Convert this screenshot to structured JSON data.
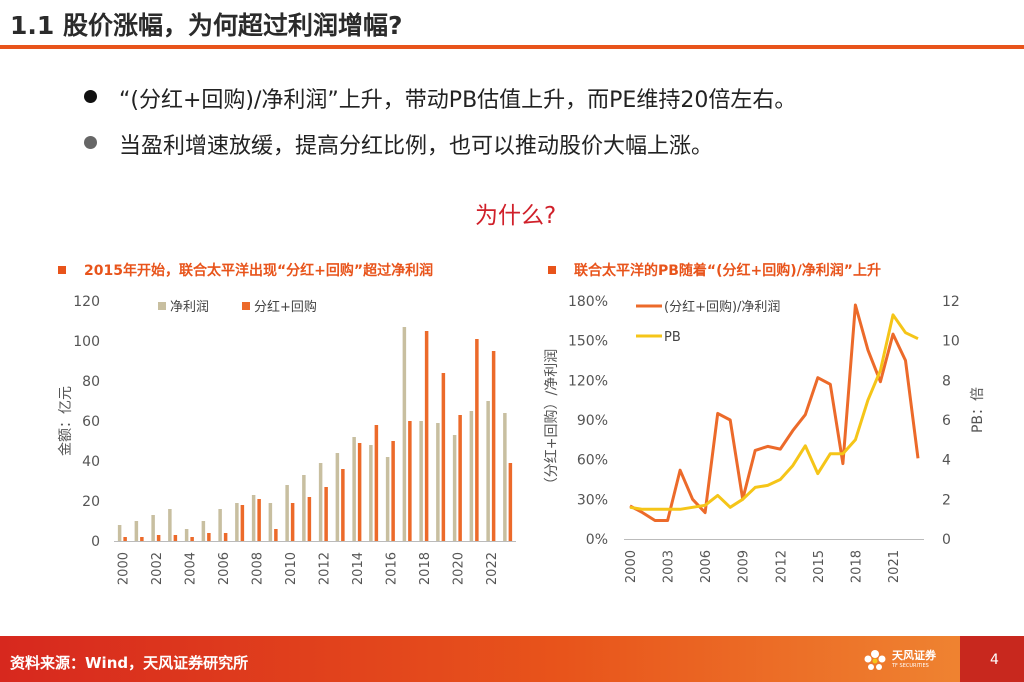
{
  "page_title": "1.1 股价涨幅，为何超过利润增幅?",
  "bullets": [
    "“(分红+回购)/净利润”上升，带动PB估值上升，而PE维持20倍左右。",
    "当盈利增速放缓，提高分红比例，也可以推动股价大幅上涨。"
  ],
  "question": "为什么?",
  "colors": {
    "accent": "#e8541b",
    "bar_profit": "#c8bfa0",
    "bar_div": "#ec6a2a",
    "line_ratio": "#ec6a2a",
    "line_pb": "#f5c518"
  },
  "chart_data": [
    {
      "type": "bar",
      "title": "2015年开始，联合太平洋出现“分红+回购”超过净利润",
      "ylabel": "金额：亿元",
      "ylim": [
        0,
        120
      ],
      "yticks": [
        "0",
        "20",
        "40",
        "60",
        "80",
        "100",
        "120"
      ],
      "xticks": [
        "2000",
        "2002",
        "2004",
        "2006",
        "2008",
        "2010",
        "2012",
        "2014",
        "2016",
        "2018",
        "2020",
        "2022"
      ],
      "categories": [
        "2000",
        "2001",
        "2002",
        "2003",
        "2004",
        "2005",
        "2006",
        "2007",
        "2008",
        "2009",
        "2010",
        "2011",
        "2012",
        "2013",
        "2014",
        "2015",
        "2016",
        "2017",
        "2018",
        "2019",
        "2020",
        "2021",
        "2022",
        "2023"
      ],
      "series": [
        {
          "name": "净利润",
          "values": [
            8,
            10,
            13,
            16,
            6,
            10,
            16,
            19,
            23,
            19,
            28,
            33,
            39,
            44,
            52,
            48,
            42,
            107,
            60,
            59,
            53,
            65,
            70,
            64
          ]
        },
        {
          "name": "分红+回购",
          "values": [
            2,
            2,
            3,
            3,
            2,
            4,
            4,
            18,
            21,
            6,
            19,
            22,
            27,
            36,
            49,
            58,
            50,
            60,
            105,
            84,
            63,
            101,
            95,
            39
          ]
        }
      ]
    },
    {
      "type": "line",
      "title": "联合太平洋的PB随着“(分红+回购)/净利润”上升",
      "ylabel_left": "（分红+回购）/净利润",
      "ylabel_right": "PB：倍",
      "ylim_left": [
        0,
        180
      ],
      "ylim_right": [
        0,
        12
      ],
      "yticks_left": [
        "0%",
        "30%",
        "60%",
        "90%",
        "120%",
        "150%",
        "180%"
      ],
      "yticks_right": [
        "0",
        "2",
        "4",
        "6",
        "8",
        "10",
        "12"
      ],
      "xticks": [
        "2000",
        "2003",
        "2006",
        "2009",
        "2012",
        "2015",
        "2018",
        "2021"
      ],
      "x": [
        2000,
        2001,
        2002,
        2003,
        2004,
        2005,
        2006,
        2007,
        2008,
        2009,
        2010,
        2011,
        2012,
        2013,
        2014,
        2015,
        2016,
        2017,
        2018,
        2019,
        2020,
        2021,
        2022,
        2023
      ],
      "series": [
        {
          "name": "(分红+回购)/净利润",
          "axis": "left",
          "values": [
            25,
            20,
            14,
            14,
            52,
            30,
            20,
            95,
            90,
            30,
            67,
            70,
            68,
            82,
            94,
            122,
            117,
            57,
            177,
            143,
            119,
            155,
            135,
            61
          ]
        },
        {
          "name": "PB",
          "axis": "right",
          "values": [
            1.6,
            1.5,
            1.5,
            1.5,
            1.5,
            1.6,
            1.7,
            2.2,
            1.6,
            2.0,
            2.6,
            2.7,
            3.0,
            3.7,
            4.7,
            3.3,
            4.3,
            4.3,
            5.0,
            7.0,
            8.5,
            11.3,
            10.4,
            10.1
          ]
        }
      ]
    }
  ],
  "footer": {
    "source": "资料来源：Wind，天风证券研究所",
    "logo_cn": "天风证券",
    "logo_en": "TF SECURITIES",
    "page": "4"
  }
}
